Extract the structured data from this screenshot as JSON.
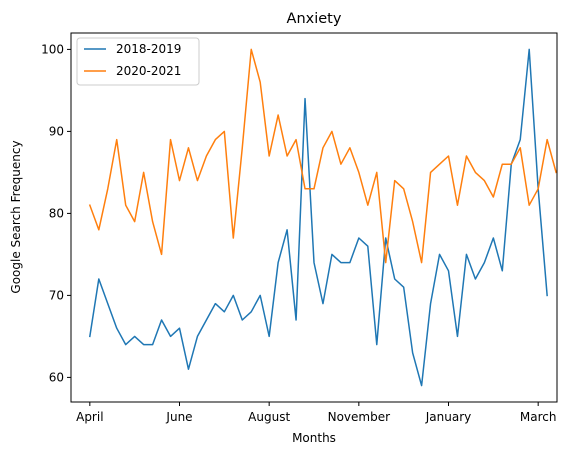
{
  "chart_data": {
    "type": "line",
    "title": "Anxiety",
    "xlabel": "Months",
    "ylabel": "Google Search Frequency",
    "x_tick_labels": [
      {
        "label": "April",
        "x": 0
      },
      {
        "label": "June",
        "x": 10
      },
      {
        "label": "August",
        "x": 20
      },
      {
        "label": "November",
        "x": 30
      },
      {
        "label": "January",
        "x": 40
      },
      {
        "label": "March",
        "x": 50
      }
    ],
    "y_ticks": [
      60,
      70,
      80,
      90,
      100
    ],
    "xlim": [
      -2.1,
      52.1
    ],
    "ylim": [
      57,
      102
    ],
    "legend_position": "upper left",
    "grid": false,
    "series": [
      {
        "name": "2018-2019",
        "color": "#1f77b4",
        "values": [
          65,
          72,
          69,
          66,
          64,
          65,
          64,
          64,
          67,
          65,
          66,
          61,
          65,
          67,
          69,
          68,
          70,
          67,
          68,
          70,
          65,
          74,
          78,
          67,
          94,
          74,
          69,
          75,
          74,
          74,
          77,
          76,
          64,
          77,
          72,
          71,
          63,
          59,
          69,
          75,
          73,
          65,
          75,
          72,
          74,
          77,
          73,
          86,
          89,
          100,
          83,
          70
        ]
      },
      {
        "name": "2020-2021",
        "color": "#ff7f0e",
        "values": [
          81,
          78,
          83,
          89,
          81,
          79,
          85,
          79,
          75,
          89,
          84,
          88,
          84,
          87,
          89,
          90,
          77,
          88,
          100,
          96,
          87,
          92,
          87,
          89,
          83,
          83,
          88,
          90,
          86,
          88,
          85,
          81,
          85,
          74,
          84,
          83,
          79,
          74,
          85,
          86,
          87,
          81,
          87,
          85,
          84,
          82,
          86,
          86,
          88,
          81,
          83,
          89,
          85
        ]
      }
    ]
  }
}
